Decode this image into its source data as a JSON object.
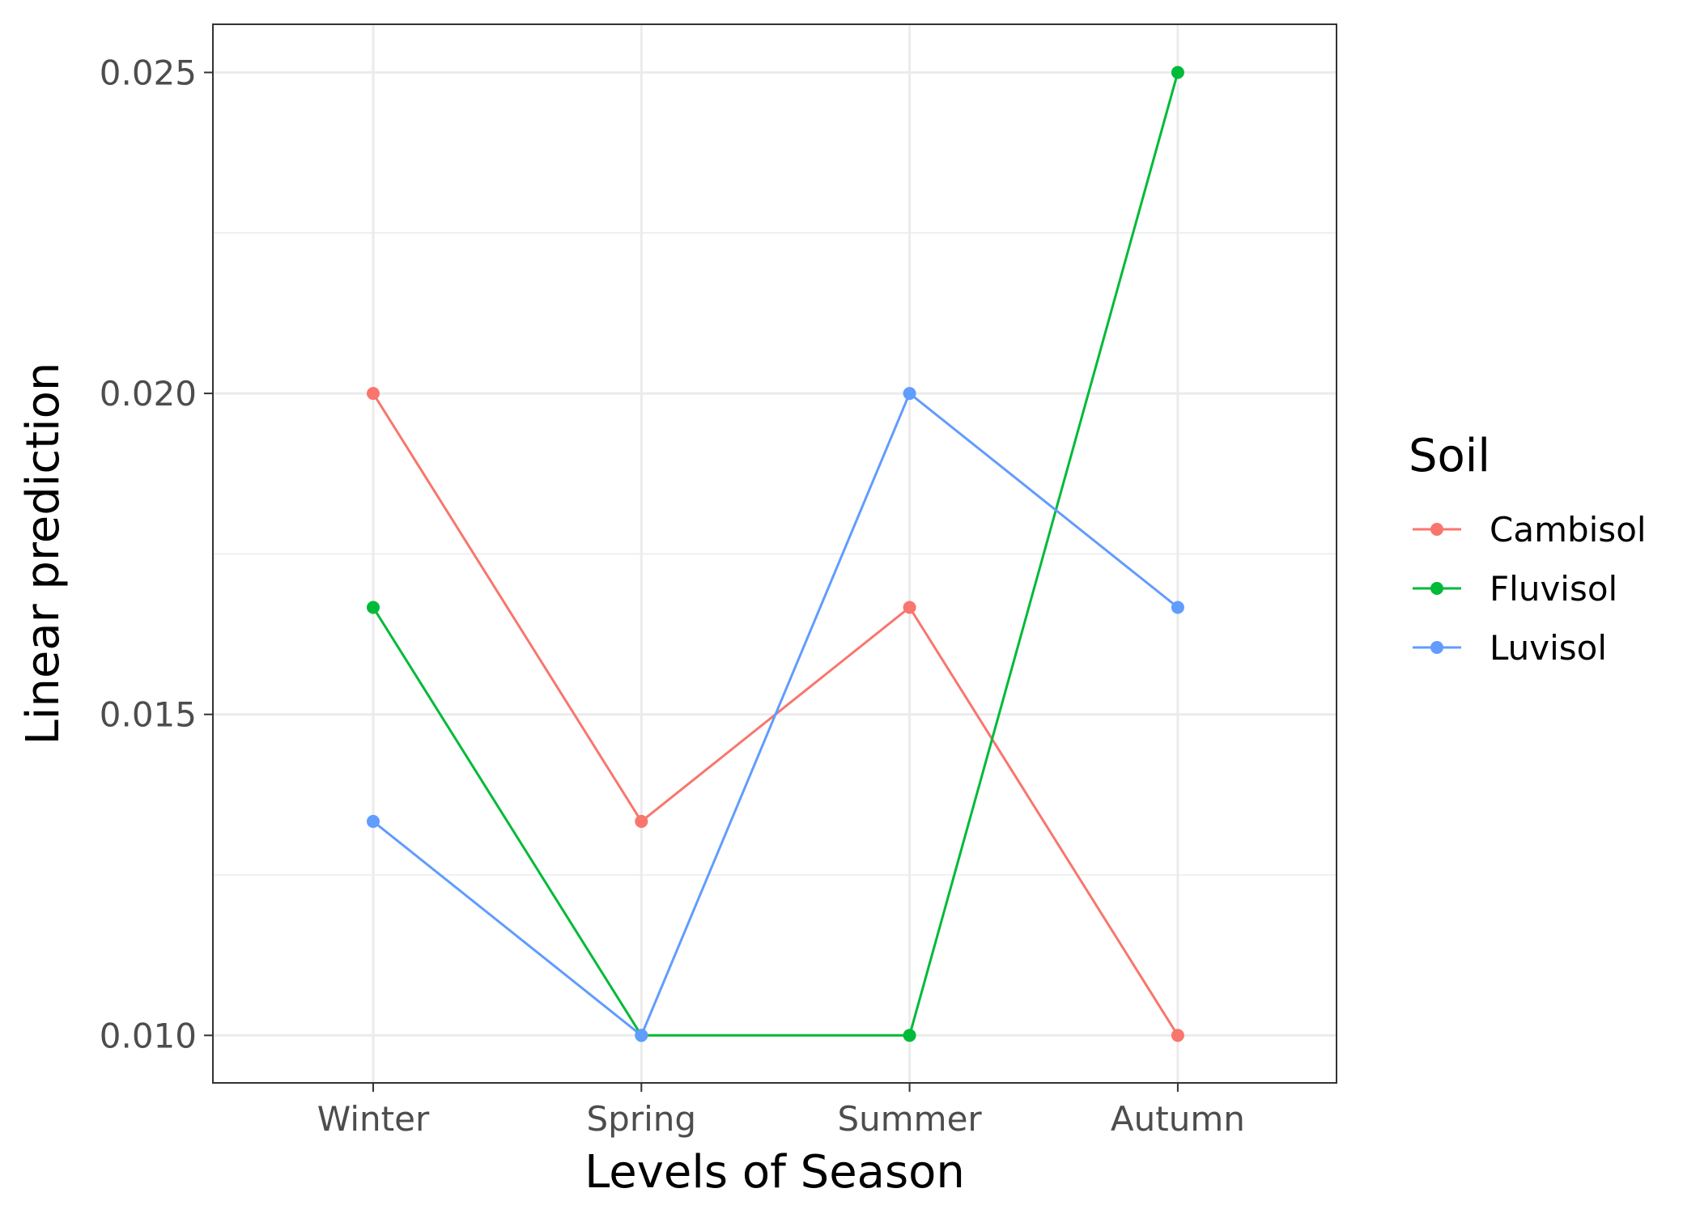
{
  "chart_data": {
    "type": "line",
    "xlabel": "Levels of Season",
    "ylabel": "Linear prediction",
    "categories": [
      "Winter",
      "Spring",
      "Summer",
      "Autumn"
    ],
    "ylim": [
      0.00926,
      0.02575
    ],
    "yticks": [
      0.01,
      0.015,
      0.02,
      0.025
    ],
    "yticks_minor": [
      0.0125,
      0.0175,
      0.0225
    ],
    "ytick_labels": [
      "0.010",
      "0.015",
      "0.020",
      "0.025"
    ],
    "grid": true,
    "legend": {
      "title": "Soil",
      "placement": "right"
    },
    "series": [
      {
        "name": "Cambisol",
        "color": "#F8766D",
        "values": [
          0.02,
          0.013333,
          0.016667,
          0.01
        ]
      },
      {
        "name": "Fluvisol",
        "color": "#00BA38",
        "values": [
          0.016667,
          0.01,
          0.01,
          0.025
        ]
      },
      {
        "name": "Luvisol",
        "color": "#619CFF",
        "values": [
          0.013333,
          0.01,
          0.02,
          0.016667
        ]
      }
    ]
  }
}
